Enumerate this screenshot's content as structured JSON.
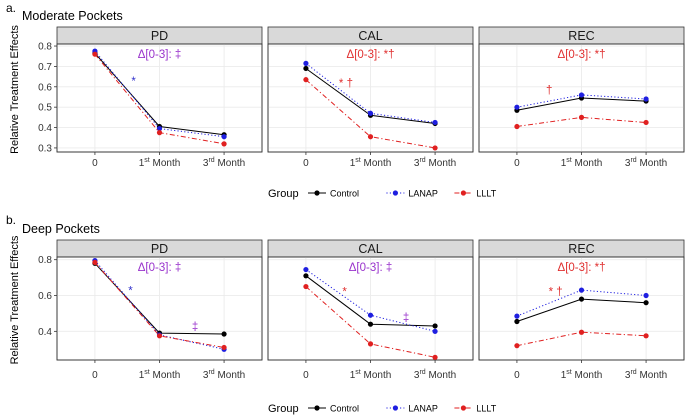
{
  "chart_data": [
    {
      "type": "line",
      "label": "a.",
      "title": "Moderate Pockets",
      "ylabel": "Relative Treatment Effects",
      "xlabel": "",
      "categories": [
        "0",
        "1st Month",
        "3rd Month"
      ],
      "yticks": [
        0.3,
        0.4,
        0.5,
        0.6,
        0.7,
        0.8
      ],
      "yticklabels": [
        "0.3",
        "0.4",
        "0.5",
        "0.6",
        "0.7",
        "0.8"
      ],
      "ylim": [
        0.28,
        0.81
      ],
      "facets": [
        {
          "name": "PD",
          "annotation": "Δ[0-3]: ‡",
          "annotation_color": "#9933cc",
          "marks": [
            {
              "text": "*",
              "color": "#3333cc",
              "x": 0.6,
              "y": 0.608
            }
          ],
          "series": [
            {
              "name": "Control",
              "values": [
                0.765,
                0.405,
                0.365
              ]
            },
            {
              "name": "LANAP",
              "values": [
                0.775,
                0.395,
                0.355
              ]
            },
            {
              "name": "LLLT",
              "values": [
                0.76,
                0.375,
                0.32
              ]
            }
          ]
        },
        {
          "name": "CAL",
          "annotation": "Δ[0-3]: *†",
          "annotation_color": "#e03030",
          "marks": [
            {
              "text": "* †",
              "color": "#e03030",
              "x": 0.62,
              "y": 0.6
            }
          ],
          "series": [
            {
              "name": "Control",
              "values": [
                0.69,
                0.46,
                0.42
              ]
            },
            {
              "name": "LANAP",
              "values": [
                0.715,
                0.47,
                0.425
              ]
            },
            {
              "name": "LLLT",
              "values": [
                0.635,
                0.355,
                0.3
              ]
            }
          ]
        },
        {
          "name": "REC",
          "annotation": "Δ[0-3]: *†",
          "annotation_color": "#e03030",
          "marks": [
            {
              "text": "†",
              "color": "#e03030",
              "x": 0.5,
              "y": 0.565
            }
          ],
          "series": [
            {
              "name": "Control",
              "values": [
                0.485,
                0.545,
                0.53
              ]
            },
            {
              "name": "LANAP",
              "values": [
                0.5,
                0.56,
                0.54
              ]
            },
            {
              "name": "LLLT",
              "values": [
                0.405,
                0.45,
                0.425
              ]
            }
          ]
        }
      ],
      "legend": {
        "title": "Group",
        "entries": [
          "Control",
          "LANAP",
          "LLLT"
        ]
      }
    },
    {
      "type": "line",
      "label": "b.",
      "title": "Deep Pockets",
      "ylabel": "Relative Treatment Effects",
      "xlabel": "",
      "categories": [
        "0",
        "1st Month",
        "3rd Month"
      ],
      "yticks": [
        0.4,
        0.6,
        0.8
      ],
      "yticklabels": [
        "0.4",
        "0.6",
        "0.8"
      ],
      "ylim": [
        0.24,
        0.815
      ],
      "facets": [
        {
          "name": "PD",
          "annotation": "Δ[0-3]: ‡",
          "annotation_color": "#9933cc",
          "marks": [
            {
              "text": "*",
              "color": "#3333cc",
              "x": 0.55,
              "y": 0.605
            },
            {
              "text": "‡",
              "color": "#9933cc",
              "x": 1.55,
              "y": 0.405
            }
          ],
          "series": [
            {
              "name": "Control",
              "values": [
                0.78,
                0.39,
                0.385
              ]
            },
            {
              "name": "LANAP",
              "values": [
                0.795,
                0.38,
                0.3
              ]
            },
            {
              "name": "LLLT",
              "values": [
                0.785,
                0.375,
                0.31
              ]
            }
          ]
        },
        {
          "name": "CAL",
          "annotation": "Δ[0-3]: ‡",
          "annotation_color": "#9933cc",
          "marks": [
            {
              "text": "*",
              "color": "#e03030",
              "x": 0.6,
              "y": 0.6
            },
            {
              "text": "‡",
              "color": "#9933cc",
              "x": 1.55,
              "y": 0.455
            }
          ],
          "series": [
            {
              "name": "Control",
              "values": [
                0.71,
                0.44,
                0.43
              ]
            },
            {
              "name": "LANAP",
              "values": [
                0.745,
                0.49,
                0.4
              ]
            },
            {
              "name": "LLLT",
              "values": [
                0.65,
                0.33,
                0.255
              ]
            }
          ]
        },
        {
          "name": "REC",
          "annotation": "Δ[0-3]: *†",
          "annotation_color": "#e03030",
          "marks": [
            {
              "text": "* †",
              "color": "#e03030",
              "x": 0.6,
              "y": 0.6
            }
          ],
          "series": [
            {
              "name": "Control",
              "values": [
                0.455,
                0.58,
                0.56
              ]
            },
            {
              "name": "LANAP",
              "values": [
                0.485,
                0.63,
                0.6
              ]
            },
            {
              "name": "LLLT",
              "values": [
                0.32,
                0.395,
                0.375
              ]
            }
          ]
        }
      ],
      "legend": {
        "title": "Group",
        "entries": [
          "Control",
          "LANAP",
          "LLLT"
        ]
      }
    }
  ],
  "series_styles": {
    "Control": {
      "color": "#000000",
      "dash": "solid"
    },
    "LANAP": {
      "color": "#1f1fe0",
      "dash": "dotted"
    },
    "LLLT": {
      "color": "#e02020",
      "dash": "dotdash"
    }
  }
}
